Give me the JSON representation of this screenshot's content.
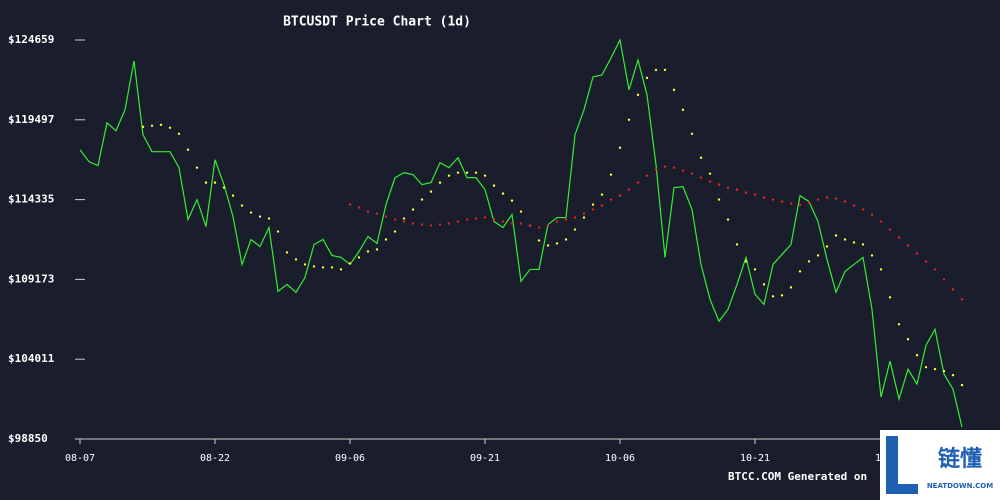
{
  "chart_data": {
    "type": "line",
    "title": "BTCUSDT Price Chart (1d)",
    "categories": [
      "08-07",
      null,
      null,
      null,
      null,
      null,
      null,
      null,
      null,
      null,
      null,
      null,
      null,
      null,
      null,
      "08-22",
      null,
      null,
      null,
      null,
      null,
      null,
      null,
      null,
      null,
      null,
      null,
      null,
      null,
      null,
      "09-06",
      null,
      null,
      null,
      null,
      null,
      null,
      null,
      null,
      null,
      null,
      null,
      null,
      null,
      null,
      "09-21",
      null,
      null,
      null,
      null,
      null,
      null,
      null,
      null,
      null,
      null,
      null,
      null,
      null,
      null,
      "10-06",
      null,
      null,
      null,
      null,
      null,
      null,
      null,
      null,
      null,
      null,
      null,
      null,
      null,
      null,
      "10-21",
      null,
      null,
      null,
      null,
      null,
      null,
      null,
      null,
      null,
      null,
      null,
      null,
      null,
      null,
      "11-05",
      null,
      null,
      null,
      null,
      null,
      null,
      null,
      null
    ],
    "series": [
      {
        "color": "#33ee33",
        "style": "line",
        "values": [
          117562,
          116788,
          116529,
          119304,
          118788,
          120143,
          123304,
          118530,
          117433,
          117433,
          117433,
          116400,
          113045,
          114336,
          112594,
          116917,
          115304,
          113239,
          110142,
          111755,
          111303,
          112529,
          108400,
          108852,
          108335,
          109303,
          111432,
          111755,
          110723,
          110594,
          110142,
          110981,
          111949,
          111497,
          114013,
          115755,
          116078,
          115949,
          115304,
          115433,
          116723,
          116401,
          117046,
          115755,
          115755,
          114981,
          112916,
          112529,
          113368,
          109045,
          109819,
          109819,
          112723,
          113174,
          113174,
          118530,
          120143,
          122272,
          122401,
          123498,
          124659,
          121433,
          123369,
          121110,
          116594,
          110594,
          115110,
          115175,
          113691,
          110142,
          107884,
          106464,
          107239,
          108852,
          110594,
          108206,
          107561,
          110142,
          110787,
          111432,
          114594,
          114207,
          112916,
          110465,
          108335,
          109690,
          110142,
          110594,
          107239,
          101561,
          103884,
          101432,
          103367,
          102400,
          104916,
          105948,
          103045,
          102077,
          99625
        ]
      },
      {
        "color": "#ffff33",
        "style": "dots",
        "values": [
          null,
          null,
          null,
          null,
          null,
          null,
          null,
          119046,
          119110,
          119175,
          118981,
          118594,
          117562,
          116401,
          115433,
          115433,
          115110,
          114594,
          113949,
          113497,
          113239,
          113110,
          112271,
          110916,
          110465,
          110142,
          110013,
          109949,
          109949,
          109820,
          110207,
          110594,
          110981,
          111110,
          111755,
          112271,
          113110,
          113691,
          114336,
          114852,
          115433,
          115884,
          116078,
          116078,
          116078,
          115884,
          115239,
          114723,
          114271,
          113562,
          112658,
          111691,
          111368,
          111497,
          111755,
          112400,
          113175,
          114013,
          114659,
          115949,
          117691,
          119498,
          121111,
          122207,
          122724,
          122724,
          121433,
          120143,
          118594,
          117046,
          116014,
          114336,
          113046,
          111433,
          110336,
          109820,
          108852,
          108078,
          108142,
          108658,
          109691,
          110336,
          110723,
          111304,
          112013,
          111755,
          111562,
          111433,
          110723,
          109820,
          108013,
          106271,
          105303,
          104271,
          103497,
          103368,
          103239,
          102980,
          102335
        ]
      },
      {
        "color": "#ee2222",
        "style": "dots",
        "values": [
          null,
          null,
          null,
          null,
          null,
          null,
          null,
          null,
          null,
          null,
          null,
          null,
          null,
          null,
          null,
          null,
          null,
          null,
          null,
          null,
          null,
          null,
          null,
          null,
          null,
          null,
          null,
          null,
          null,
          null,
          114013,
          113820,
          113562,
          113433,
          113239,
          113046,
          112917,
          112788,
          112723,
          112658,
          112723,
          112788,
          112917,
          113046,
          113110,
          113175,
          113046,
          112917,
          112788,
          112788,
          112658,
          112529,
          112658,
          112917,
          113046,
          113175,
          113433,
          113691,
          113949,
          114336,
          114594,
          114981,
          115433,
          115884,
          116272,
          116465,
          116401,
          116207,
          116014,
          115755,
          115497,
          115304,
          115110,
          114981,
          114788,
          114659,
          114465,
          114336,
          114207,
          114078,
          114013,
          114142,
          114336,
          114465,
          114401,
          114207,
          113949,
          113691,
          113368,
          112917,
          112400,
          111884,
          111368,
          110852,
          110336,
          109820,
          109174,
          108529,
          107884
        ]
      }
    ],
    "ylim": [
      98850,
      124659
    ],
    "yticks": [
      {
        "value": 98850,
        "label": "$98850"
      },
      {
        "value": 104011,
        "label": "$104011"
      },
      {
        "value": 109173,
        "label": "$109173"
      },
      {
        "value": 114335,
        "label": "$114335"
      },
      {
        "value": 119497,
        "label": "$119497"
      },
      {
        "value": 124659,
        "label": "$124659"
      }
    ],
    "footer": "BTCC.COM Generated on",
    "watermark": {
      "name": "链懂",
      "site": "NEATDOWN.COM"
    }
  }
}
